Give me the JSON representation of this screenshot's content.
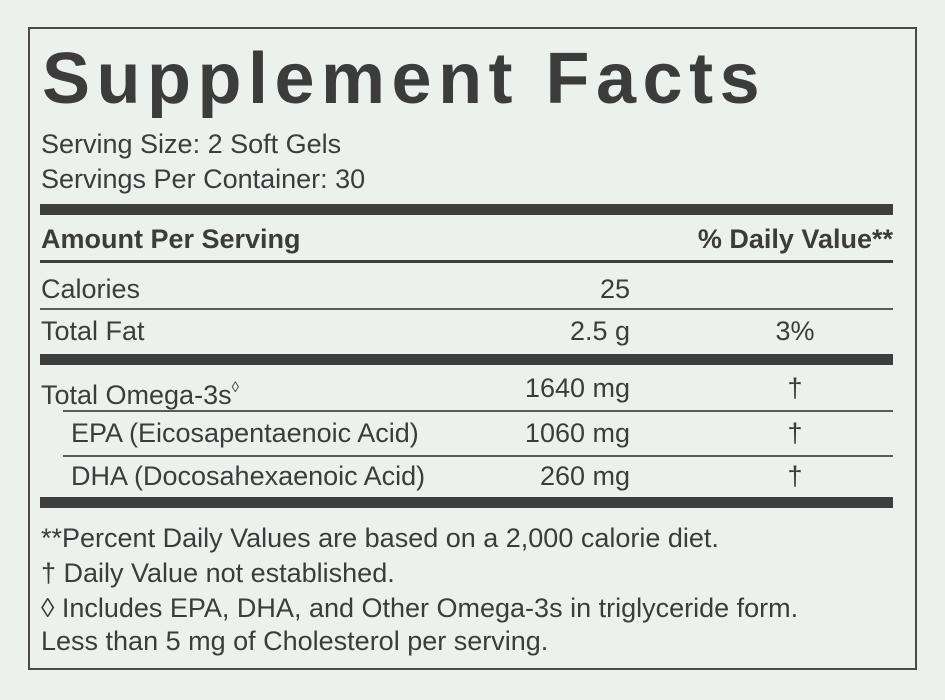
{
  "title": "Supplement Facts",
  "serving_info": [
    "Serving Size: 2 Soft Gels",
    "Servings Per Container: 30"
  ],
  "table": {
    "header": [
      "Amount Per Serving",
      "% Daily Value**"
    ],
    "rows": [
      {
        "name": "Calories",
        "amount": "25"
      },
      {
        "name": "Total Fat",
        "amount": "2.5 g",
        "daily_value": "3%"
      },
      {
        "name": "Total Omega-3s",
        "marker": "◊",
        "amount": "1640 mg",
        "daily_value": "†"
      },
      {
        "name": "EPA (Eicosapentaenoic Acid)",
        "amount": "1060 mg",
        "daily_value": "†"
      },
      {
        "name": "DHA (Docosahexaenoic Acid)",
        "amount": "260 mg",
        "daily_value": "†"
      }
    ]
  },
  "footnotes": [
    "**Percent Daily Values are based on a 2,000 calorie diet.",
    "† Daily Value not established.",
    "◊ Includes EPA, DHA, and Other Omega-3s in triglyceride form.",
    "Less than 5 mg of Cholesterol per serving."
  ]
}
